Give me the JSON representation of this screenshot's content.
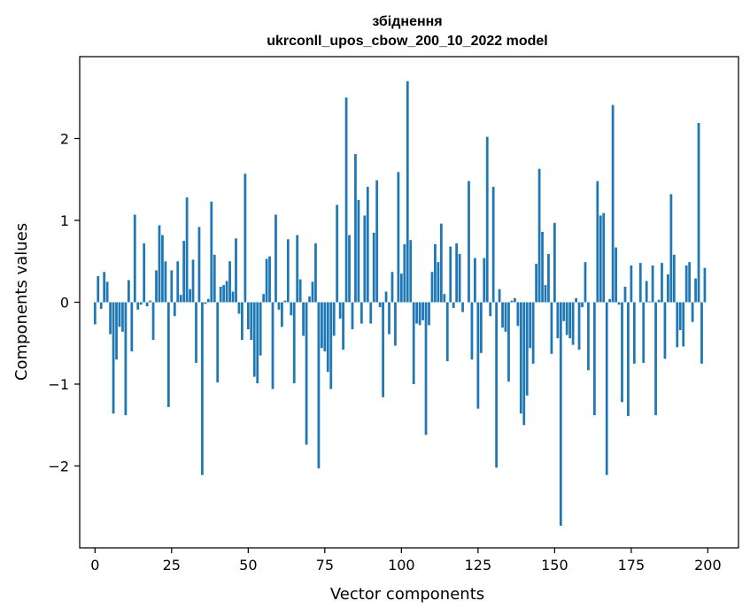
{
  "chart_data": {
    "type": "bar",
    "title": "збіднення",
    "subtitle": "ukrconll_upos_cbow_200_10_2022 model",
    "xlabel": "Vector components",
    "ylabel": "Components values",
    "xlim": [
      -5,
      210
    ],
    "ylim": [
      -3.0,
      3.0
    ],
    "xticks": [
      0,
      25,
      50,
      75,
      100,
      125,
      150,
      175,
      200
    ],
    "yticks": [
      -2,
      -1,
      0,
      1,
      2
    ],
    "xtick_labels": [
      "0",
      "25",
      "50",
      "75",
      "100",
      "125",
      "150",
      "175",
      "200"
    ],
    "ytick_labels": [
      "−2",
      "−1",
      "0",
      "1",
      "2"
    ],
    "bar_color": "#1f77b4",
    "values": [
      -0.27,
      0.32,
      -0.08,
      0.37,
      0.25,
      -0.39,
      -1.36,
      -0.7,
      -0.3,
      -0.36,
      -1.38,
      0.27,
      -0.6,
      1.07,
      -0.09,
      -0.03,
      0.72,
      -0.05,
      0.02,
      -0.46,
      0.39,
      0.94,
      0.82,
      0.5,
      -1.28,
      0.39,
      -0.17,
      0.5,
      0.09,
      0.75,
      1.28,
      0.16,
      0.52,
      -0.74,
      0.92,
      -2.11,
      -0.02,
      0.04,
      1.23,
      0.58,
      -0.98,
      0.19,
      0.21,
      0.26,
      0.5,
      0.13,
      0.78,
      -0.14,
      -0.46,
      1.57,
      -0.33,
      -0.46,
      -0.91,
      -0.99,
      -0.65,
      0.1,
      0.53,
      0.56,
      -1.06,
      1.07,
      -0.09,
      -0.3,
      0.02,
      0.77,
      -0.16,
      -0.99,
      0.82,
      0.28,
      -0.41,
      -1.74,
      0.07,
      0.25,
      0.72,
      -2.03,
      -0.56,
      -0.6,
      -0.85,
      -1.06,
      -0.41,
      1.19,
      -0.2,
      -0.58,
      2.5,
      0.82,
      -0.33,
      1.81,
      1.25,
      -0.26,
      1.06,
      1.41,
      -0.26,
      0.85,
      1.49,
      -0.06,
      -1.16,
      0.13,
      -0.39,
      0.37,
      -0.53,
      1.59,
      0.35,
      0.71,
      2.7,
      0.76,
      -1.0,
      -0.26,
      -0.28,
      -0.22,
      -1.62,
      -0.28,
      0.37,
      0.71,
      0.49,
      0.96,
      0.1,
      -0.72,
      0.68,
      -0.07,
      0.72,
      0.59,
      -0.12,
      0.0,
      1.48,
      -0.7,
      0.54,
      -1.3,
      -0.62,
      0.54,
      2.02,
      -0.17,
      1.41,
      -2.02,
      0.16,
      -0.31,
      -0.36,
      -0.97,
      0.02,
      0.05,
      -0.29,
      -1.36,
      -1.5,
      -1.14,
      -0.56,
      -0.75,
      0.47,
      1.63,
      0.86,
      0.21,
      0.59,
      -0.63,
      0.97,
      -0.44,
      -2.73,
      -0.23,
      -0.4,
      -0.44,
      -0.52,
      0.05,
      -0.58,
      -0.06,
      0.49,
      -0.83,
      0.0,
      -1.38,
      1.48,
      1.06,
      1.09,
      -2.11,
      0.04,
      2.41,
      0.67,
      -0.03,
      -1.22,
      0.19,
      -1.39,
      0.45,
      -0.75,
      0.0,
      0.48,
      -0.74,
      0.26,
      0.01,
      0.45,
      -1.38,
      0.03,
      0.48,
      -0.69,
      0.34,
      1.32,
      0.58,
      -0.55,
      -0.34,
      -0.54,
      0.45,
      0.49,
      -0.24,
      0.29,
      2.19,
      -0.75,
      0.42
    ]
  }
}
